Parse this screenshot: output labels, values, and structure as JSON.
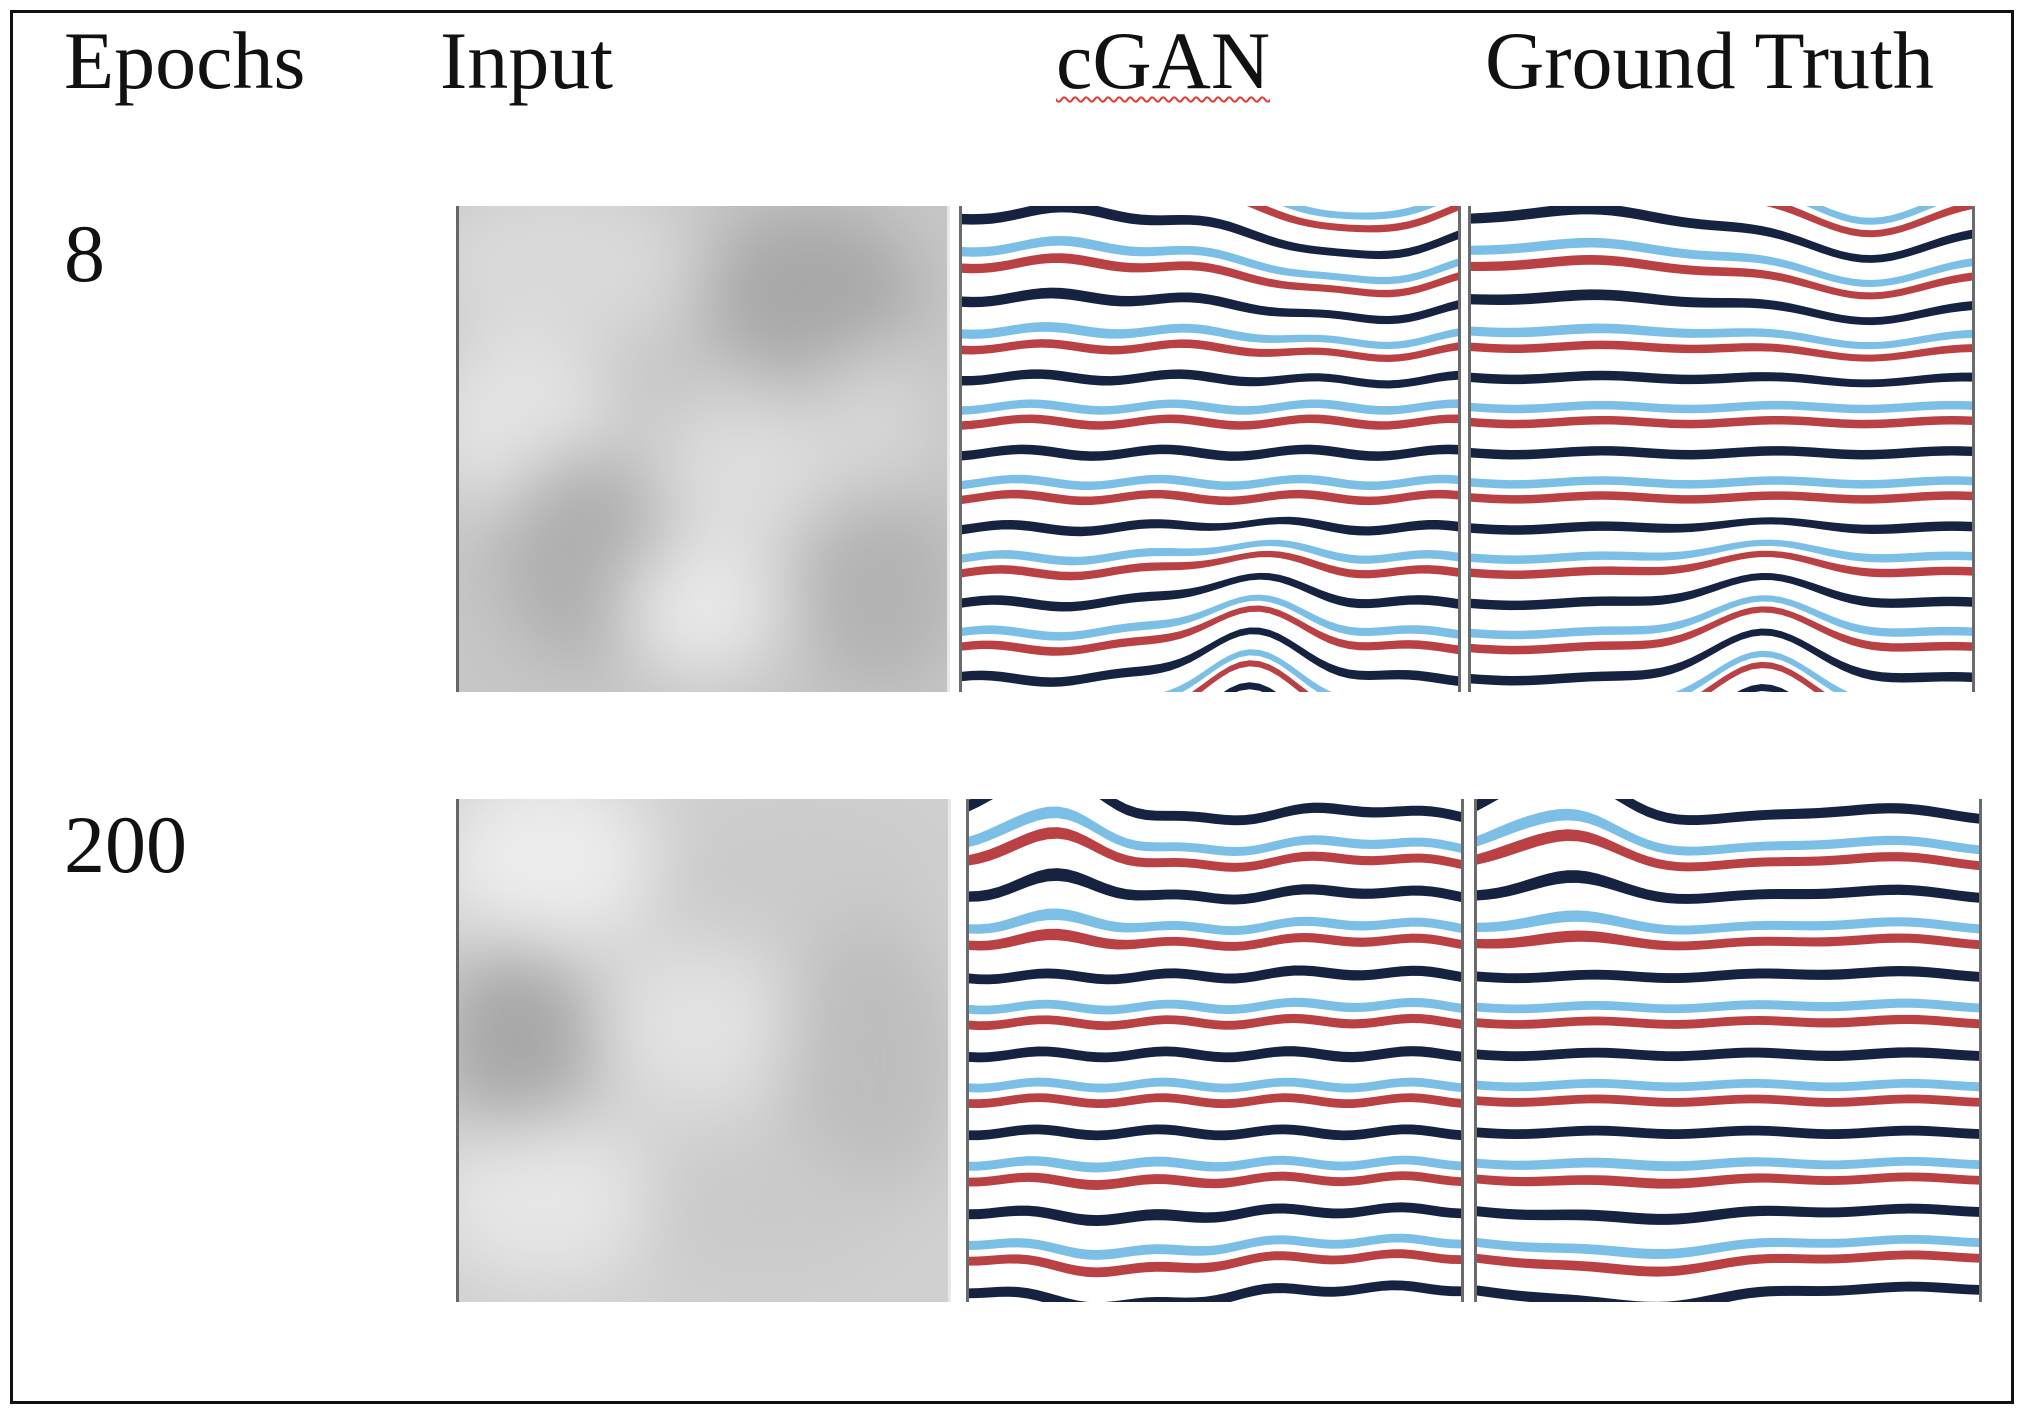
{
  "headers": {
    "epochs": "Epochs",
    "input": "Input",
    "cgan": "cGAN",
    "ground_truth": "Ground Truth"
  },
  "rows": [
    {
      "epochs": "8"
    },
    {
      "epochs": "200"
    }
  ],
  "stripe_colors": {
    "dark": "#152240",
    "light_blue": "#7bbfe6",
    "red": "#b94144",
    "white": "#ffffff"
  },
  "input_colors": {
    "light": "#e8e8e8",
    "mid": "#c8c8c8",
    "dark": "#a9a9a9"
  }
}
